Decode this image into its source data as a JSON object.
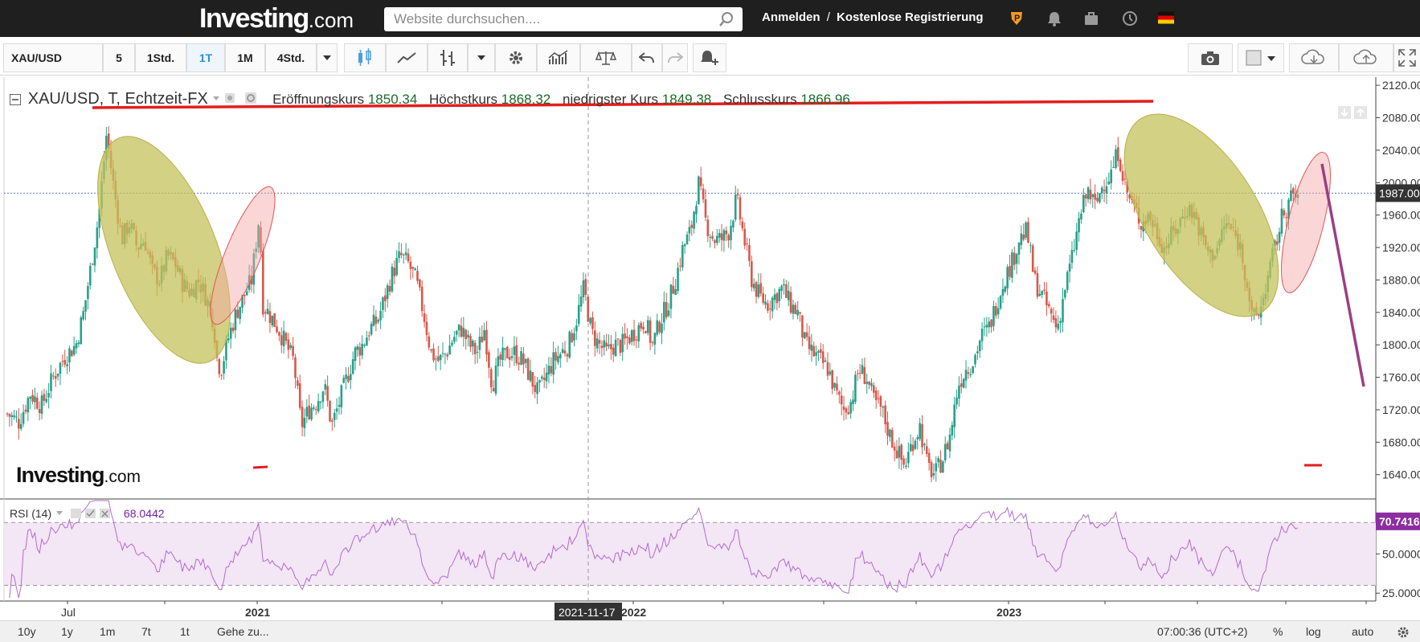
{
  "header": {
    "logo_main": "Investing",
    "logo_suffix": ".com",
    "search_placeholder": "Website durchsuchen....",
    "login": "Anmelden",
    "separator": "/",
    "register": "Kostenlose Registrierung"
  },
  "toolbar": {
    "symbol": "XAU/USD",
    "intervals": [
      "5",
      "1Std.",
      "1T",
      "1M",
      "4Std."
    ],
    "active_interval": "1T"
  },
  "legend": {
    "title": "XAU/USD, T, Echtzeit-FX",
    "open_label": "Eröffnungskurs",
    "open_value": "1850.34",
    "high_label": "Höchstkurs",
    "high_value": "1868.32",
    "low_label": "niedrigster Kurs",
    "low_value": "1849.38",
    "close_label": "Schlusskurs",
    "close_value": "1866.96",
    "rsi_label": "RSI (14)",
    "rsi_value": "68.0442"
  },
  "watermark": {
    "main": "Investing",
    "suffix": ".com"
  },
  "chart_data": [
    {
      "type": "candlestick",
      "symbol": "XAU/USD",
      "ylim": [
        1610,
        2130
      ],
      "yticks": [
        1640,
        1680,
        1720,
        1760,
        1800,
        1840,
        1880,
        1920,
        1960,
        2000,
        2040,
        2080,
        2120
      ],
      "ytick_labels": [
        "1640.00",
        "1680.00",
        "1720.00",
        "1760.00",
        "1800.00",
        "1840.00",
        "1880.00",
        "1920.00",
        "1960.00",
        "2000.00",
        "2040.00",
        "2080.00",
        "2120.00"
      ],
      "current_price": "1987.00",
      "current_value": 1987,
      "x_labels": [
        "Jul",
        "2021",
        "2022",
        "2023"
      ],
      "crosshair_label": "2021-11-17",
      "price_path": [
        [
          0,
          1715
        ],
        [
          3,
          1705
        ],
        [
          6,
          1740
        ],
        [
          9,
          1725
        ],
        [
          12,
          1760
        ],
        [
          15,
          1785
        ],
        [
          18,
          1800
        ],
        [
          20,
          1840
        ],
        [
          22,
          1900
        ],
        [
          24,
          1960
        ],
        [
          26,
          2060
        ],
        [
          28,
          1990
        ],
        [
          30,
          1930
        ],
        [
          32,
          1950
        ],
        [
          34,
          1920
        ],
        [
          36,
          1930
        ],
        [
          38,
          1890
        ],
        [
          40,
          1880
        ],
        [
          42,
          1910
        ],
        [
          44,
          1900
        ],
        [
          46,
          1875
        ],
        [
          48,
          1865
        ],
        [
          50,
          1880
        ],
        [
          52,
          1860
        ],
        [
          54,
          1830
        ],
        [
          55,
          1780
        ],
        [
          56,
          1770
        ],
        [
          58,
          1810
        ],
        [
          60,
          1840
        ],
        [
          62,
          1860
        ],
        [
          64,
          1880
        ],
        [
          66,
          1960
        ],
        [
          67,
          1850
        ],
        [
          69,
          1835
        ],
        [
          71,
          1820
        ],
        [
          73,
          1800
        ],
        [
          75,
          1780
        ],
        [
          77,
          1700
        ],
        [
          79,
          1720
        ],
        [
          81,
          1730
        ],
        [
          83,
          1750
        ],
        [
          85,
          1700
        ],
        [
          87,
          1730
        ],
        [
          89,
          1760
        ],
        [
          91,
          1790
        ],
        [
          93,
          1800
        ],
        [
          95,
          1820
        ],
        [
          97,
          1830
        ],
        [
          99,
          1860
        ],
        [
          101,
          1890
        ],
        [
          103,
          1910
        ],
        [
          105,
          1900
        ],
        [
          107,
          1880
        ],
        [
          109,
          1840
        ],
        [
          111,
          1790
        ],
        [
          113,
          1780
        ],
        [
          115,
          1790
        ],
        [
          117,
          1810
        ],
        [
          119,
          1820
        ],
        [
          121,
          1800
        ],
        [
          123,
          1790
        ],
        [
          125,
          1820
        ],
        [
          127,
          1750
        ],
        [
          129,
          1780
        ],
        [
          131,
          1790
        ],
        [
          133,
          1790
        ],
        [
          135,
          1780
        ],
        [
          137,
          1760
        ],
        [
          139,
          1740
        ],
        [
          141,
          1760
        ],
        [
          143,
          1780
        ],
        [
          145,
          1790
        ],
        [
          147,
          1800
        ],
        [
          149,
          1830
        ],
        [
          151,
          1870
        ],
        [
          153,
          1815
        ],
        [
          155,
          1800
        ],
        [
          157,
          1790
        ],
        [
          159,
          1800
        ],
        [
          161,
          1800
        ],
        [
          163,
          1810
        ],
        [
          165,
          1820
        ],
        [
          167,
          1830
        ],
        [
          169,
          1800
        ],
        [
          171,
          1830
        ],
        [
          173,
          1850
        ],
        [
          175,
          1880
        ],
        [
          177,
          1920
        ],
        [
          179,
          1940
        ],
        [
          181,
          2000
        ],
        [
          183,
          1950
        ],
        [
          185,
          1930
        ],
        [
          187,
          1930
        ],
        [
          189,
          1940
        ],
        [
          191,
          1980
        ],
        [
          193,
          1930
        ],
        [
          195,
          1880
        ],
        [
          197,
          1860
        ],
        [
          199,
          1850
        ],
        [
          201,
          1860
        ],
        [
          203,
          1870
        ],
        [
          205,
          1850
        ],
        [
          207,
          1840
        ],
        [
          209,
          1800
        ],
        [
          211,
          1790
        ],
        [
          213,
          1780
        ],
        [
          215,
          1770
        ],
        [
          217,
          1740
        ],
        [
          219,
          1720
        ],
        [
          221,
          1730
        ],
        [
          223,
          1770
        ],
        [
          225,
          1760
        ],
        [
          227,
          1730
        ],
        [
          229,
          1720
        ],
        [
          231,
          1690
        ],
        [
          233,
          1670
        ],
        [
          235,
          1650
        ],
        [
          237,
          1680
        ],
        [
          239,
          1700
        ],
        [
          241,
          1650
        ],
        [
          243,
          1640
        ],
        [
          245,
          1660
        ],
        [
          247,
          1690
        ],
        [
          249,
          1750
        ],
        [
          251,
          1770
        ],
        [
          253,
          1780
        ],
        [
          255,
          1810
        ],
        [
          257,
          1820
        ],
        [
          259,
          1850
        ],
        [
          261,
          1880
        ],
        [
          263,
          1900
        ],
        [
          265,
          1930
        ],
        [
          267,
          1940
        ],
        [
          269,
          1880
        ],
        [
          271,
          1860
        ],
        [
          273,
          1840
        ],
        [
          275,
          1820
        ],
        [
          277,
          1870
        ],
        [
          279,
          1910
        ],
        [
          281,
          1960
        ],
        [
          283,
          1990
        ],
        [
          285,
          1970
        ],
        [
          287,
          2000
        ],
        [
          289,
          2010
        ],
        [
          291,
          2040
        ],
        [
          293,
          1990
        ],
        [
          295,
          1970
        ],
        [
          297,
          1950
        ],
        [
          299,
          1960
        ],
        [
          301,
          1940
        ],
        [
          303,
          1920
        ],
        [
          305,
          1935
        ],
        [
          307,
          1950
        ],
        [
          309,
          1970
        ],
        [
          311,
          1960
        ],
        [
          313,
          1930
        ],
        [
          315,
          1910
        ],
        [
          317,
          1920
        ],
        [
          319,
          1950
        ],
        [
          321,
          1940
        ],
        [
          323,
          1920
        ],
        [
          325,
          1870
        ],
        [
          326,
          1830
        ],
        [
          328,
          1840
        ],
        [
          330,
          1880
        ],
        [
          332,
          1920
        ],
        [
          334,
          1960
        ],
        [
          336,
          1980
        ],
        [
          338,
          1985
        ]
      ]
    },
    {
      "type": "line",
      "name": "RSI (14)",
      "ylim": [
        20,
        85
      ],
      "yticks": [
        25,
        50
      ],
      "ytick_labels": [
        "25.0000",
        "50.0000"
      ],
      "current_label": "70.7416",
      "current_value": 70.74,
      "bands": [
        30,
        70
      ]
    }
  ],
  "bottom": {
    "ranges": [
      "10y",
      "1y",
      "1m",
      "7t",
      "1t"
    ],
    "goto": "Gehe zu...",
    "time": "07:00:36 (UTC+2)",
    "percent": "%",
    "log": "log",
    "auto": "auto"
  },
  "colors": {
    "up": "#26a08a",
    "down": "#d9574b",
    "rsi": "#b36ad1",
    "rsi_band": "#f3e6f5",
    "olive": "#c4c25a",
    "pink": "#f3a7a5",
    "red_line": "#e41d1d",
    "purple_arrow": "#9c3f83",
    "price_line": "#5b79b5"
  }
}
